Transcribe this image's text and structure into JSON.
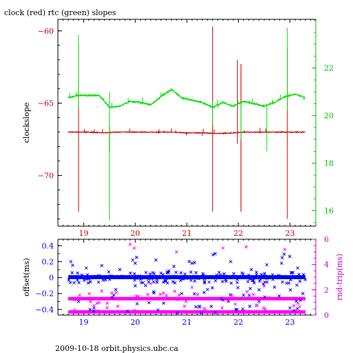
{
  "chart_data": [
    {
      "type": "line",
      "title": "clock (red) rtc (green) slopes",
      "xlabel": "",
      "ylabel": "clockslope",
      "y2label": "",
      "xlim": [
        18.5,
        23.5
      ],
      "ylim": [
        -73.5,
        -59.2
      ],
      "y2lim": [
        15.35,
        24.05
      ],
      "x_ticks": [
        19,
        20,
        21,
        22,
        23
      ],
      "x_tick_labels": [
        "19",
        "20",
        "21",
        "22",
        "23"
      ],
      "y_ticks": [
        -60,
        -65,
        -70
      ],
      "y_tick_labels": [
        "−60",
        "−65",
        "−70"
      ],
      "y2_ticks": [
        16,
        18,
        20,
        22
      ],
      "y2_tick_labels": [
        "16",
        "18",
        "20",
        "22"
      ],
      "colors": {
        "clock": "#cc0000",
        "rtc": "#00e000",
        "axes": "#000000",
        "y2axis": "#00c000"
      },
      "series": [
        {
          "axis": "left",
          "color": "#cc0000",
          "x": [
            18.7,
            18.9,
            19.1,
            19.4,
            19.6,
            19.9,
            20.1,
            20.4,
            20.7,
            21.0,
            21.3,
            21.6,
            21.9,
            22.1,
            22.4,
            22.7,
            23.0,
            23.3
          ],
          "y": [
            -67.0,
            -67.0,
            -67.0,
            -67.05,
            -67.0,
            -67.0,
            -67.0,
            -67.0,
            -67.0,
            -67.05,
            -67.05,
            -67.1,
            -67.05,
            -67.0,
            -67.0,
            -67.0,
            -67.0,
            -67.0
          ],
          "spikes": [
            {
              "x": 18.9,
              "y": [
                -72.5,
                -61.0
              ]
            },
            {
              "x": 19.5,
              "y": [
                -68.4,
                -66.6
              ]
            },
            {
              "x": 21.5,
              "y": [
                -72.5,
                -59.7
              ]
            },
            {
              "x": 21.98,
              "y": [
                -67.8,
                -62.0
              ]
            },
            {
              "x": 22.05,
              "y": [
                -72.5,
                -62.3
              ]
            },
            {
              "x": 22.95,
              "y": [
                -73.0,
                -61.2
              ]
            }
          ]
        },
        {
          "axis": "right",
          "color": "#00e000",
          "x": [
            18.7,
            18.9,
            19.1,
            19.3,
            19.5,
            19.7,
            19.9,
            20.1,
            20.3,
            20.5,
            20.7,
            20.9,
            21.1,
            21.3,
            21.5,
            21.7,
            21.9,
            22.1,
            22.3,
            22.5,
            22.7,
            22.9,
            23.1,
            23.3
          ],
          "y": [
            20.75,
            20.85,
            20.85,
            20.85,
            20.35,
            20.4,
            20.6,
            20.55,
            20.45,
            20.8,
            21.1,
            20.75,
            20.65,
            20.55,
            20.35,
            20.55,
            20.4,
            20.6,
            20.5,
            20.4,
            20.55,
            20.8,
            20.9,
            20.75
          ],
          "spikes": [
            {
              "x": 18.9,
              "y": [
                20.3,
                23.4
              ]
            },
            {
              "x": 19.5,
              "y": [
                15.6,
                21.0
              ]
            },
            {
              "x": 21.5,
              "y": [
                19.6,
                20.6
              ]
            },
            {
              "x": 22.05,
              "y": [
                19.0,
                20.5
              ]
            },
            {
              "x": 22.55,
              "y": [
                18.5,
                20.4
              ]
            },
            {
              "x": 22.95,
              "y": [
                20.2,
                23.7
              ]
            }
          ]
        }
      ]
    },
    {
      "type": "scatter",
      "title": "",
      "xlabel": "",
      "ylabel": "offset(ms)",
      "y2label": "rnd-trip(ms)",
      "xlim": [
        18.5,
        23.5
      ],
      "ylim": [
        -0.47,
        0.48
      ],
      "y2lim": [
        0,
        6
      ],
      "x_ticks": [
        19,
        20,
        21,
        22,
        23
      ],
      "x_tick_labels": [
        "19",
        "20",
        "21",
        "22",
        "23"
      ],
      "y_ticks": [
        0.4,
        0.2,
        0,
        -0.2,
        -0.4
      ],
      "y_tick_labels": [
        "0.4",
        "0.2",
        "0",
        "−0.2",
        "−0.4"
      ],
      "y2_ticks": [
        0,
        2,
        4,
        6
      ],
      "y2_tick_labels": [
        "0",
        "2",
        "4",
        "6"
      ],
      "colors": {
        "offset": "#0000ff",
        "roundtrip": "#ff00ff",
        "y2axis": "#cc00cc"
      },
      "series": [
        {
          "axis": "left",
          "color": "#0000ff",
          "band": {
            "x": [
              18.7,
              23.3
            ],
            "y": [
              -0.02,
              0.03
            ]
          },
          "outliers": {
            "x": [
              18.75,
              18.9,
              19.05,
              19.2,
              19.35,
              19.55,
              19.7,
              19.85,
              20.0,
              20.2,
              20.4,
              20.55,
              20.75,
              20.9,
              21.1,
              21.25,
              21.4,
              21.55,
              21.7,
              21.85,
              21.95,
              22.1,
              22.25,
              22.4,
              22.55,
              22.7,
              22.85,
              23.0,
              23.15,
              23.25
            ],
            "y": [
              0.2,
              -0.3,
              0.12,
              -0.38,
              0.15,
              -0.25,
              0.1,
              -0.42,
              0.18,
              -0.1,
              0.22,
              -0.32,
              0.14,
              -0.2,
              0.18,
              -0.36,
              -0.15,
              0.3,
              -0.28,
              0.2,
              -0.4,
              -0.22,
              0.1,
              -0.3,
              0.16,
              -0.12,
              0.25,
              -0.38,
              0.12,
              -0.2
            ]
          }
        },
        {
          "axis": "right",
          "color": "#ff00ff",
          "bands": [
            {
              "x": [
                18.7,
                23.3
              ],
              "y": 1.3
            },
            {
              "x": [
                18.7,
                23.3
              ],
              "y": 0.25
            }
          ],
          "outliers": {
            "x": [
              19.9,
              19.98,
              20.8,
              21.7,
              22.15,
              22.9,
              20.3,
              21.1,
              22.5,
              19.3
            ],
            "y": [
              5.6,
              5.3,
              5.0,
              5.3,
              5.4,
              5.2,
              2.5,
              2.2,
              2.3,
              1.0
            ]
          }
        }
      ]
    }
  ],
  "footer": "2009-10-18 orbit.physics.ubc.ca"
}
